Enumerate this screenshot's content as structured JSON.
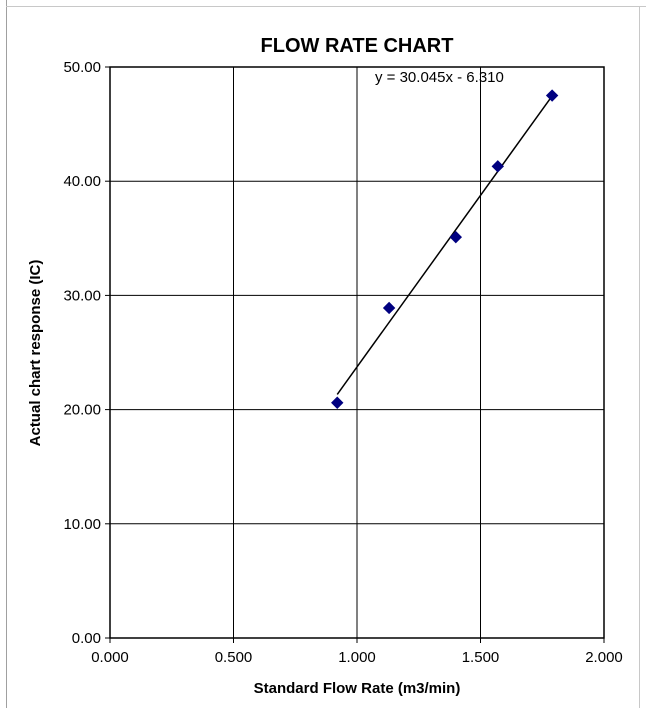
{
  "chart_data": {
    "type": "scatter",
    "title": "FLOW RATE CHART",
    "xlabel": "Standard Flow Rate (m3/min)",
    "ylabel": "Actual chart response (IC)",
    "xlim": [
      0,
      2
    ],
    "ylim": [
      0,
      50
    ],
    "x_ticks": [
      "0.000",
      "0.500",
      "1.000",
      "1.500",
      "2.000"
    ],
    "y_ticks": [
      "0.00",
      "10.00",
      "20.00",
      "30.00",
      "40.00",
      "50.00"
    ],
    "x_tick_values": [
      0,
      0.5,
      1.0,
      1.5,
      2.0
    ],
    "y_tick_values": [
      0,
      10,
      20,
      30,
      40,
      50
    ],
    "grid": true,
    "marker_color": "#000080",
    "series": [
      {
        "points": [
          {
            "x": 0.92,
            "y": 20.6
          },
          {
            "x": 1.13,
            "y": 28.9
          },
          {
            "x": 1.4,
            "y": 35.1
          },
          {
            "x": 1.57,
            "y": 41.3
          },
          {
            "x": 1.79,
            "y": 47.5
          }
        ]
      }
    ],
    "trendline": {
      "slope": 30.045,
      "intercept": -6.31,
      "x_range": [
        0.92,
        1.79
      ],
      "label": "y = 30.045x - 6.310"
    }
  }
}
